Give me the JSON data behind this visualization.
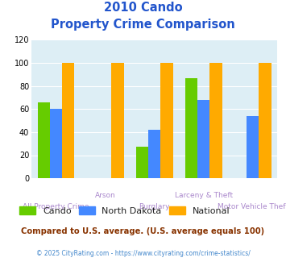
{
  "title_line1": "2010 Cando",
  "title_line2": "Property Crime Comparison",
  "categories": [
    "All Property Crime",
    "Arson",
    "Burglary",
    "Larceny & Theft",
    "Motor Vehicle Theft"
  ],
  "cando": [
    66,
    0,
    27,
    87,
    0
  ],
  "north_dakota": [
    60,
    0,
    42,
    68,
    54
  ],
  "national": [
    100,
    100,
    100,
    100,
    100
  ],
  "color_cando": "#66cc00",
  "color_nd": "#4488ff",
  "color_nat": "#ffaa00",
  "ylim": [
    0,
    120
  ],
  "yticks": [
    0,
    20,
    40,
    60,
    80,
    100,
    120
  ],
  "top_labels": [
    "",
    "Arson",
    "",
    "Larceny & Theft",
    ""
  ],
  "bottom_labels": [
    "All Property Crime",
    "",
    "Burglary",
    "",
    "Motor Vehicle Theft"
  ],
  "footnote1": "Compared to U.S. average. (U.S. average equals 100)",
  "footnote2": "© 2025 CityRating.com - https://www.cityrating.com/crime-statistics/",
  "title_color": "#2255cc",
  "footnote1_color": "#883300",
  "footnote2_color": "#4488cc",
  "xlabel_color": "#aa88cc",
  "background_color": "#ddeef5",
  "legend_text_color": "#222222"
}
